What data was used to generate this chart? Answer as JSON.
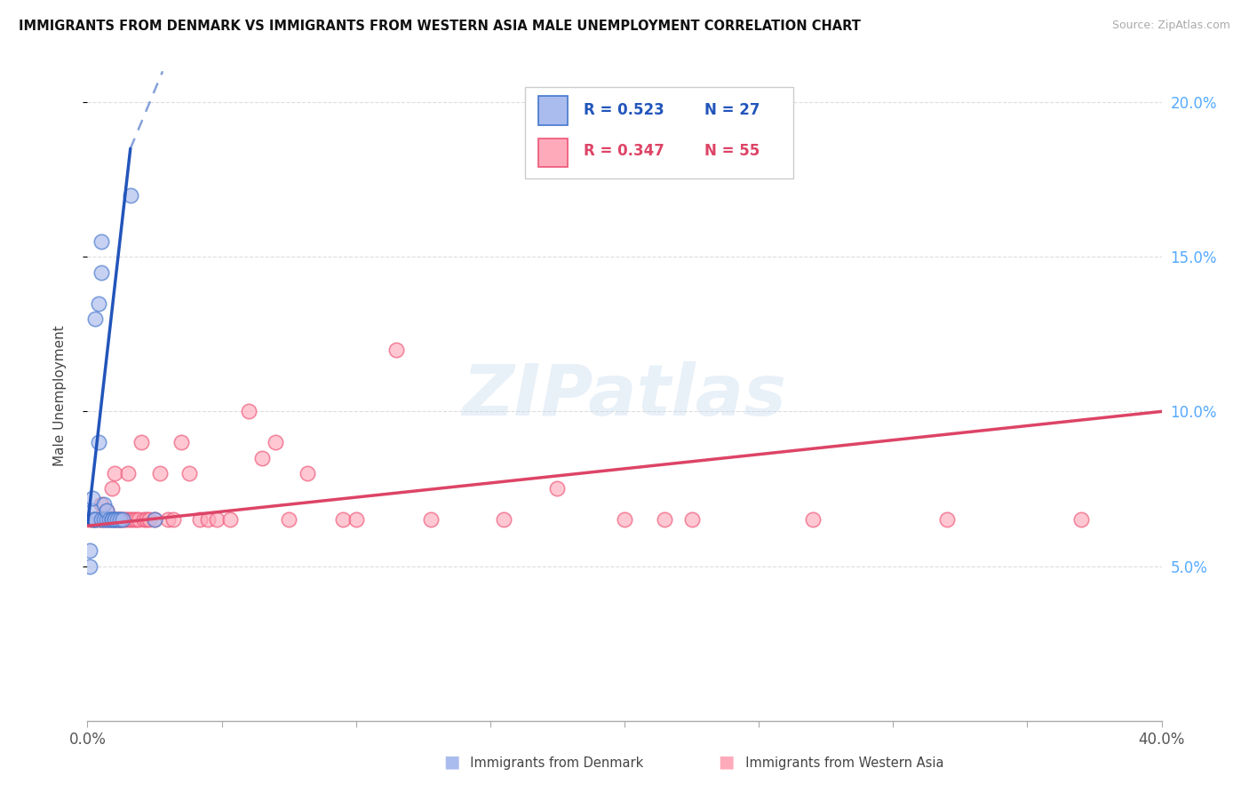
{
  "title": "IMMIGRANTS FROM DENMARK VS IMMIGRANTS FROM WESTERN ASIA MALE UNEMPLOYMENT CORRELATION CHART",
  "source": "Source: ZipAtlas.com",
  "ylabel": "Male Unemployment",
  "xlim": [
    0.0,
    0.4
  ],
  "ylim": [
    0.0,
    0.21
  ],
  "color_denmark_fill": "#aabbee",
  "color_denmark_edge": "#4477cc",
  "color_western_asia_fill": "#ffaabb",
  "color_western_asia_edge": "#ee5577",
  "color_trend_denmark": "#2255bb",
  "color_trend_western_asia": "#dd4466",
  "color_right_axis": "#55aaff",
  "denmark_x": [
    0.001,
    0.001,
    0.002,
    0.002,
    0.002,
    0.003,
    0.003,
    0.003,
    0.004,
    0.004,
    0.005,
    0.005,
    0.005,
    0.006,
    0.006,
    0.007,
    0.007,
    0.008,
    0.009,
    0.009,
    0.01,
    0.01,
    0.011,
    0.012,
    0.013,
    0.016,
    0.025
  ],
  "denmark_y": [
    0.055,
    0.05,
    0.065,
    0.068,
    0.072,
    0.065,
    0.065,
    0.13,
    0.09,
    0.135,
    0.145,
    0.155,
    0.065,
    0.065,
    0.07,
    0.065,
    0.068,
    0.065,
    0.065,
    0.065,
    0.065,
    0.065,
    0.065,
    0.065,
    0.065,
    0.17,
    0.065
  ],
  "western_asia_x": [
    0.001,
    0.002,
    0.003,
    0.004,
    0.005,
    0.005,
    0.006,
    0.007,
    0.007,
    0.008,
    0.009,
    0.01,
    0.01,
    0.011,
    0.012,
    0.012,
    0.013,
    0.014,
    0.015,
    0.015,
    0.016,
    0.017,
    0.018,
    0.019,
    0.02,
    0.021,
    0.022,
    0.023,
    0.025,
    0.027,
    0.03,
    0.032,
    0.035,
    0.038,
    0.042,
    0.045,
    0.048,
    0.053,
    0.06,
    0.065,
    0.07,
    0.075,
    0.082,
    0.095,
    0.1,
    0.115,
    0.128,
    0.155,
    0.175,
    0.2,
    0.215,
    0.225,
    0.27,
    0.32,
    0.37
  ],
  "western_asia_y": [
    0.065,
    0.065,
    0.065,
    0.065,
    0.065,
    0.07,
    0.065,
    0.065,
    0.068,
    0.065,
    0.075,
    0.065,
    0.08,
    0.065,
    0.065,
    0.065,
    0.065,
    0.065,
    0.08,
    0.065,
    0.065,
    0.065,
    0.065,
    0.065,
    0.09,
    0.065,
    0.065,
    0.065,
    0.065,
    0.08,
    0.065,
    0.065,
    0.09,
    0.08,
    0.065,
    0.065,
    0.065,
    0.065,
    0.1,
    0.085,
    0.09,
    0.065,
    0.08,
    0.065,
    0.065,
    0.12,
    0.065,
    0.065,
    0.075,
    0.065,
    0.065,
    0.065,
    0.065,
    0.065,
    0.065
  ],
  "trend_dk_x0": 0.0,
  "trend_dk_y0": 0.063,
  "trend_dk_x1": 0.016,
  "trend_dk_y1": 0.185,
  "trend_dk_dash_x0": 0.016,
  "trend_dk_dash_y0": 0.185,
  "trend_dk_dash_x1": 0.028,
  "trend_dk_dash_y1": 0.21,
  "trend_wa_x0": 0.0,
  "trend_wa_y0": 0.063,
  "trend_wa_x1": 0.4,
  "trend_wa_y1": 0.1
}
